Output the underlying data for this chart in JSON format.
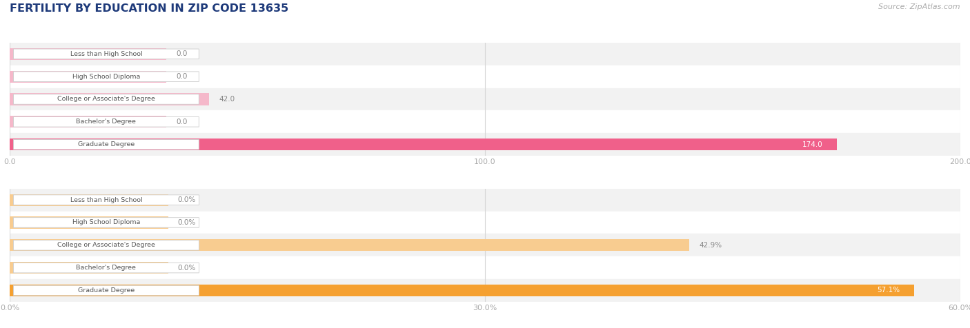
{
  "title": "FERTILITY BY EDUCATION IN ZIP CODE 13635",
  "source": "Source: ZipAtlas.com",
  "top_chart": {
    "categories": [
      "Less than High School",
      "High School Diploma",
      "College or Associate's Degree",
      "Bachelor's Degree",
      "Graduate Degree"
    ],
    "values": [
      0.0,
      0.0,
      42.0,
      0.0,
      174.0
    ],
    "xlim_max": 200,
    "xticks": [
      0.0,
      100.0,
      200.0
    ],
    "xtick_labels": [
      "0.0",
      "100.0",
      "200.0"
    ],
    "bar_color_highlight": "#f0608a",
    "bar_color_normal": "#f5b8ca",
    "highlight_index": 4,
    "value_suffix": "",
    "min_bar_val": 33
  },
  "bottom_chart": {
    "categories": [
      "Less than High School",
      "High School Diploma",
      "College or Associate's Degree",
      "Bachelor's Degree",
      "Graduate Degree"
    ],
    "values": [
      0.0,
      0.0,
      42.9,
      0.0,
      57.1
    ],
    "xlim_max": 60,
    "xticks": [
      0.0,
      30.0,
      60.0
    ],
    "xtick_labels": [
      "0.0%",
      "30.0%",
      "60.0%"
    ],
    "bar_color_highlight": "#f5a030",
    "bar_color_normal": "#f8cc90",
    "highlight_index": 4,
    "value_suffix": "%",
    "min_bar_val": 10
  },
  "bg_color": "#ffffff",
  "row_colors": [
    "#f2f2f2",
    "#ffffff"
  ],
  "label_box_bg": "#ffffff",
  "label_box_edge": "#cccccc",
  "label_text_color": "#555555",
  "grid_color": "#d8d8d8",
  "tick_label_color": "#aaaaaa",
  "title_color": "#1e3a7a",
  "source_color": "#aaaaaa",
  "value_label_color": "#888888"
}
